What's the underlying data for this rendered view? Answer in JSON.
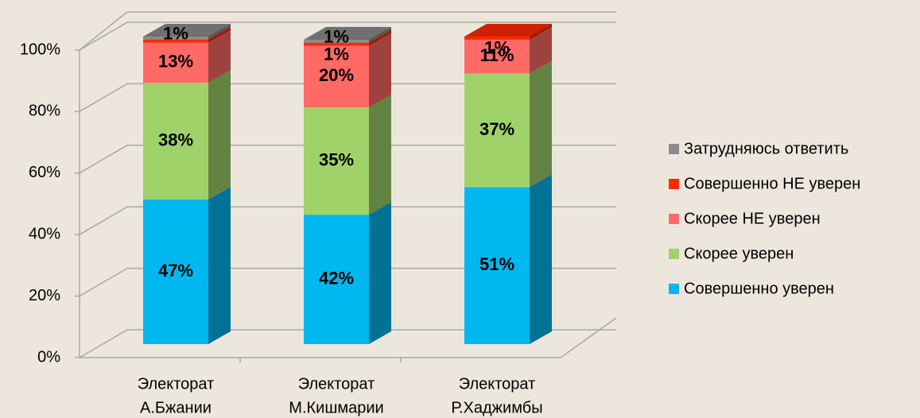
{
  "chart_data": {
    "type": "bar3d_stacked",
    "categories": [
      "Электорат А.Бжании",
      "Электорат М.Кишмарии",
      "Электорат Р.Хаджимбы"
    ],
    "series": [
      {
        "name": "Совершенно уверен",
        "color": "#00b8f0",
        "values": [
          47,
          42,
          51
        ],
        "value_labels": [
          "47%",
          "42%",
          "51%"
        ]
      },
      {
        "name": "Скорее уверен",
        "color": "#9fd36a",
        "values": [
          38,
          35,
          37
        ],
        "value_labels": [
          "38%",
          "35%",
          "37%"
        ]
      },
      {
        "name": "Скорее НЕ уверен",
        "color": "#ff6a66",
        "values": [
          13,
          20,
          11
        ],
        "value_labels": [
          "13%",
          "20%",
          "11%"
        ]
      },
      {
        "name": "Совершенно НЕ уверен",
        "color": "#ff2a00",
        "values": [
          1,
          1,
          1
        ],
        "value_labels": [
          null,
          "1%",
          "1%"
        ]
      },
      {
        "name": "Затрудняюсь ответить",
        "color": "#8c8c8c",
        "values": [
          1,
          1,
          null
        ],
        "value_labels": [
          "1%",
          "1%",
          null
        ]
      }
    ],
    "ylim": [
      0,
      100
    ],
    "yticks": [
      {
        "value": 0,
        "label": "0%"
      },
      {
        "value": 20,
        "label": "20%"
      },
      {
        "value": 40,
        "label": "40%"
      },
      {
        "value": 60,
        "label": "60%"
      },
      {
        "value": 80,
        "label": "80%"
      },
      {
        "value": 100,
        "label": "100%"
      }
    ],
    "grid": true,
    "legend": "right"
  }
}
